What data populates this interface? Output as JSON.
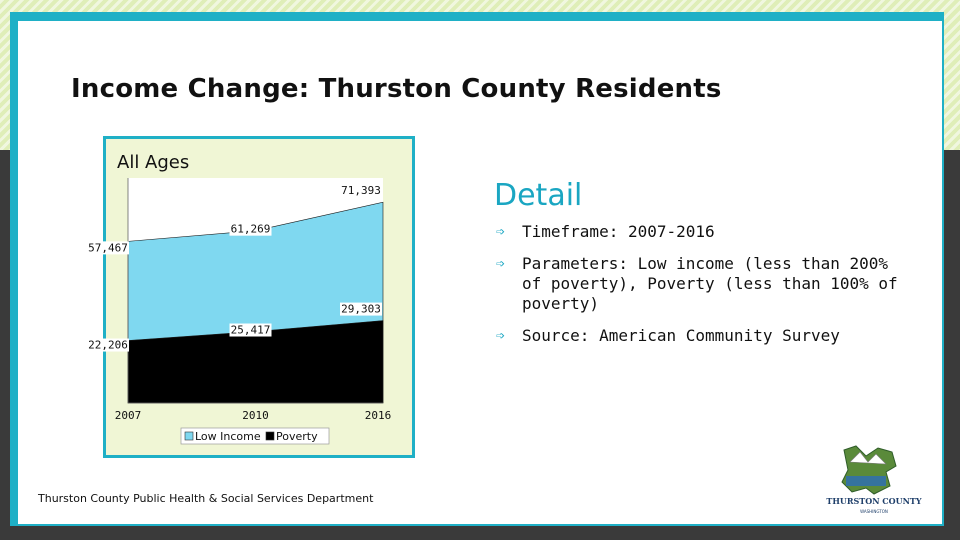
{
  "slide": {
    "title": "Income Change: Thurston County Residents",
    "source_text": "Thurston County Public Health & Social Services Department",
    "colors": {
      "accent": "#1fb0c6",
      "low_income": "#7fd8f0",
      "poverty": "#000000",
      "chart_bg": "#f0f6d5"
    }
  },
  "detail": {
    "heading": "Detail",
    "bullet_icon": "arrow-icon",
    "items": [
      {
        "text": "Timeframe: 2007-2016"
      },
      {
        "text": "Parameters: Low income (less than 200% of poverty), Poverty (less than 100% of poverty)"
      },
      {
        "text": "Source: American Community Survey"
      }
    ]
  },
  "logo": {
    "icon": "thurston-county-logo-icon",
    "text": "THURSTON COUNTY",
    "subtext": "WASHINGTON"
  },
  "chart_data": {
    "type": "area",
    "title": "All Ages",
    "categories": [
      "2007",
      "2010",
      "2016"
    ],
    "series": [
      {
        "name": "Low Income",
        "values": [
          57467,
          61269,
          71393
        ],
        "labels": [
          "57,467",
          "61,269",
          "71,393"
        ],
        "color": "#7fd8f0"
      },
      {
        "name": "Poverty",
        "values": [
          22206,
          25417,
          29303
        ],
        "labels": [
          "22,206",
          "25,417",
          "29,303"
        ],
        "color": "#000000"
      }
    ],
    "ylim": [
      0,
      80000
    ],
    "grid": false,
    "legend": "bottom"
  }
}
